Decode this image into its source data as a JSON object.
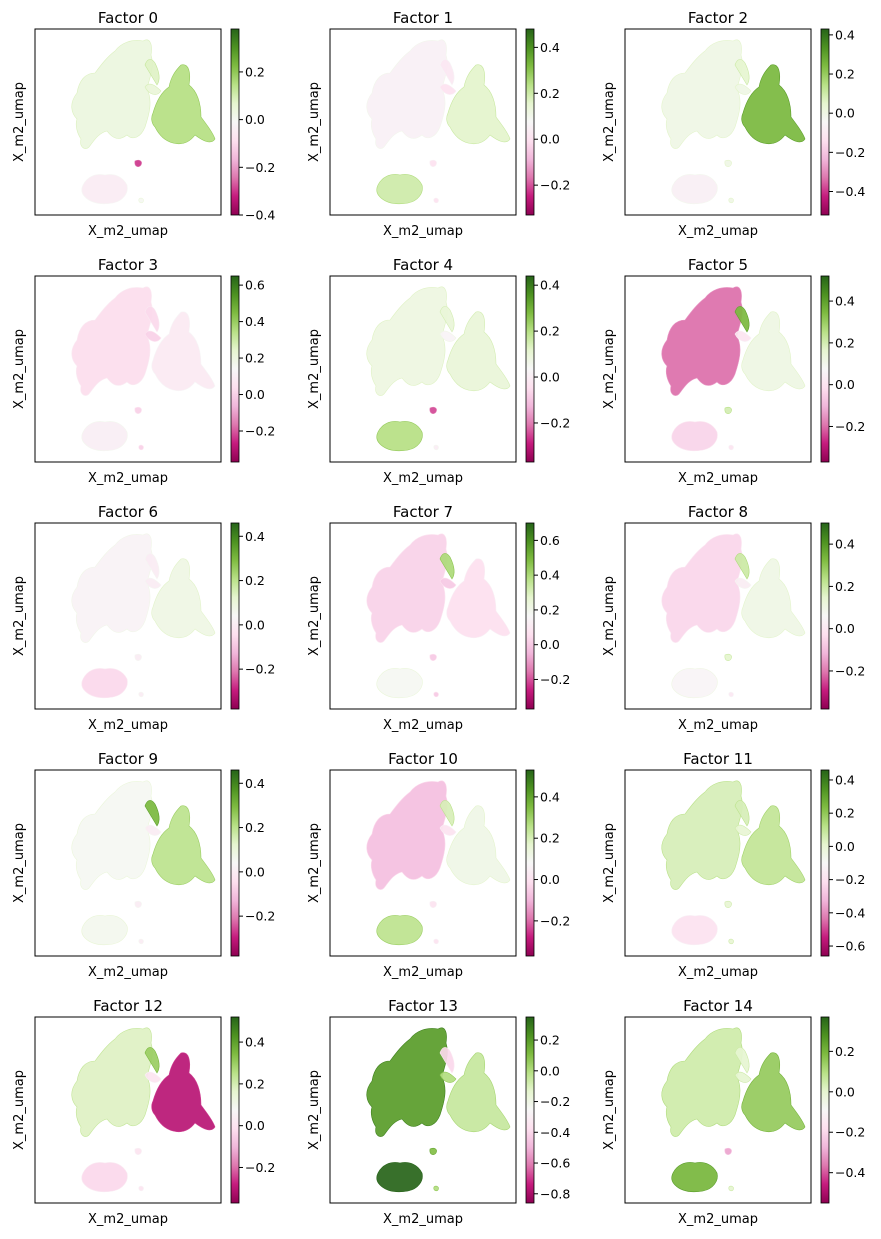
{
  "chart_data": [
    {
      "type": "scatter",
      "title": "Factor 0",
      "xlabel": "X_m2_umap",
      "ylabel": "X_m2_umap",
      "colorbar": {
        "cmap": "PiYG",
        "vmin": -0.4,
        "vmax": 0.38,
        "ticks": [
          -0.4,
          -0.2,
          0.0,
          0.2
        ],
        "tick_labels": [
          "−0.4",
          "−0.2",
          "0.0",
          "0.2"
        ]
      }
    },
    {
      "type": "scatter",
      "title": "Factor 1",
      "xlabel": "X_m2_umap",
      "ylabel": "X_m2_umap",
      "colorbar": {
        "cmap": "PiYG",
        "vmin": -0.33,
        "vmax": 0.48,
        "ticks": [
          -0.2,
          0.0,
          0.2,
          0.4
        ],
        "tick_labels": [
          "−0.2",
          "0.0",
          "0.2",
          "0.4"
        ]
      }
    },
    {
      "type": "scatter",
      "title": "Factor 2",
      "xlabel": "X_m2_umap",
      "ylabel": "X_m2_umap",
      "colorbar": {
        "cmap": "PiYG",
        "vmin": -0.52,
        "vmax": 0.43,
        "ticks": [
          -0.4,
          -0.2,
          0.0,
          0.2,
          0.4
        ],
        "tick_labels": [
          "−0.4",
          "−0.2",
          "0.0",
          "0.2",
          "0.4"
        ]
      }
    },
    {
      "type": "scatter",
      "title": "Factor 3",
      "xlabel": "X_m2_umap",
      "ylabel": "X_m2_umap",
      "colorbar": {
        "cmap": "PiYG",
        "vmin": -0.37,
        "vmax": 0.65,
        "ticks": [
          -0.2,
          0.0,
          0.2,
          0.4,
          0.6
        ],
        "tick_labels": [
          "−0.2",
          "0.0",
          "0.2",
          "0.4",
          "0.6"
        ]
      }
    },
    {
      "type": "scatter",
      "title": "Factor 4",
      "xlabel": "X_m2_umap",
      "ylabel": "X_m2_umap",
      "colorbar": {
        "cmap": "PiYG",
        "vmin": -0.37,
        "vmax": 0.44,
        "ticks": [
          -0.2,
          0.0,
          0.2,
          0.4
        ],
        "tick_labels": [
          "−0.2",
          "0.0",
          "0.2",
          "0.4"
        ]
      }
    },
    {
      "type": "scatter",
      "title": "Factor 5",
      "xlabel": "X_m2_umap",
      "ylabel": "X_m2_umap",
      "colorbar": {
        "cmap": "PiYG",
        "vmin": -0.37,
        "vmax": 0.52,
        "ticks": [
          -0.2,
          0.0,
          0.2,
          0.4
        ],
        "tick_labels": [
          "−0.2",
          "0.0",
          "0.2",
          "0.4"
        ]
      }
    },
    {
      "type": "scatter",
      "title": "Factor 6",
      "xlabel": "X_m2_umap",
      "ylabel": "X_m2_umap",
      "colorbar": {
        "cmap": "PiYG",
        "vmin": -0.38,
        "vmax": 0.46,
        "ticks": [
          -0.2,
          0.0,
          0.2,
          0.4
        ],
        "tick_labels": [
          "−0.2",
          "0.0",
          "0.2",
          "0.4"
        ]
      }
    },
    {
      "type": "scatter",
      "title": "Factor 7",
      "xlabel": "X_m2_umap",
      "ylabel": "X_m2_umap",
      "colorbar": {
        "cmap": "PiYG",
        "vmin": -0.37,
        "vmax": 0.7,
        "ticks": [
          -0.2,
          0.0,
          0.2,
          0.4,
          0.6
        ],
        "tick_labels": [
          "−0.2",
          "0.0",
          "0.2",
          "0.4",
          "0.6"
        ]
      }
    },
    {
      "type": "scatter",
      "title": "Factor 8",
      "xlabel": "X_m2_umap",
      "ylabel": "X_m2_umap",
      "colorbar": {
        "cmap": "PiYG",
        "vmin": -0.38,
        "vmax": 0.5,
        "ticks": [
          -0.2,
          0.0,
          0.2,
          0.4
        ],
        "tick_labels": [
          "−0.2",
          "0.0",
          "0.2",
          "0.4"
        ]
      }
    },
    {
      "type": "scatter",
      "title": "Factor 9",
      "xlabel": "X_m2_umap",
      "ylabel": "X_m2_umap",
      "colorbar": {
        "cmap": "PiYG",
        "vmin": -0.38,
        "vmax": 0.46,
        "ticks": [
          -0.2,
          0.0,
          0.2,
          0.4
        ],
        "tick_labels": [
          "−0.2",
          "0.0",
          "0.2",
          "0.4"
        ]
      }
    },
    {
      "type": "scatter",
      "title": "Factor 10",
      "xlabel": "X_m2_umap",
      "ylabel": "X_m2_umap",
      "colorbar": {
        "cmap": "PiYG",
        "vmin": -0.37,
        "vmax": 0.53,
        "ticks": [
          -0.2,
          0.0,
          0.2,
          0.4
        ],
        "tick_labels": [
          "−0.2",
          "0.0",
          "0.2",
          "0.4"
        ]
      }
    },
    {
      "type": "scatter",
      "title": "Factor 11",
      "xlabel": "X_m2_umap",
      "ylabel": "X_m2_umap",
      "colorbar": {
        "cmap": "PiYG",
        "vmin": -0.66,
        "vmax": 0.46,
        "ticks": [
          -0.6,
          -0.4,
          -0.2,
          0.0,
          0.2,
          0.4
        ],
        "tick_labels": [
          "−0.6",
          "−0.4",
          "−0.2",
          "0.0",
          "0.2",
          "0.4"
        ]
      }
    },
    {
      "type": "scatter",
      "title": "Factor 12",
      "xlabel": "X_m2_umap",
      "ylabel": "X_m2_umap",
      "colorbar": {
        "cmap": "PiYG",
        "vmin": -0.37,
        "vmax": 0.52,
        "ticks": [
          -0.2,
          0.0,
          0.2,
          0.4
        ],
        "tick_labels": [
          "−0.2",
          "0.0",
          "0.2",
          "0.4"
        ]
      }
    },
    {
      "type": "scatter",
      "title": "Factor 13",
      "xlabel": "X_m2_umap",
      "ylabel": "X_m2_umap",
      "colorbar": {
        "cmap": "PiYG",
        "vmin": -0.86,
        "vmax": 0.35,
        "ticks": [
          -0.8,
          -0.6,
          -0.4,
          -0.2,
          0.0,
          0.2
        ],
        "tick_labels": [
          "−0.8",
          "−0.6",
          "−0.4",
          "−0.2",
          "0.0",
          "0.2"
        ]
      }
    },
    {
      "type": "scatter",
      "title": "Factor 14",
      "xlabel": "X_m2_umap",
      "ylabel": "X_m2_umap",
      "colorbar": {
        "cmap": "PiYG",
        "vmin": -0.55,
        "vmax": 0.37,
        "ticks": [
          -0.4,
          -0.2,
          0.0,
          0.2
        ],
        "tick_labels": [
          "−0.4",
          "−0.2",
          "0.0",
          "0.2"
        ]
      }
    }
  ],
  "colors": {
    "colormap_stops": [
      "#8e0152",
      "#c51b7d",
      "#de77ae",
      "#f1b6da",
      "#fde0ef",
      "#f7f7f7",
      "#e6f5d0",
      "#b8e186",
      "#7fbc41",
      "#4d9221",
      "#276419"
    ],
    "axes": "#000000",
    "background": "#ffffff"
  }
}
